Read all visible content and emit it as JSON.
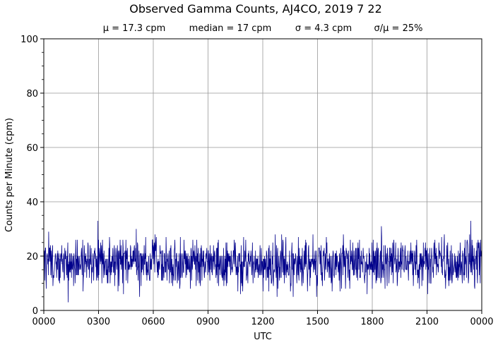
{
  "chart_data": {
    "type": "line",
    "title": "Observed Gamma Counts, AJ4CO, 2019 7 22",
    "subtitle": [
      "μ = 17.3 cpm",
      "median = 17 cpm",
      "σ = 4.3 cpm",
      "σ/μ = 25%"
    ],
    "xlabel": "UTC",
    "ylabel": "Counts per Minute (cpm)",
    "xlim": [
      0,
      1440
    ],
    "ylim": [
      0,
      100
    ],
    "x_unit": "minutes of day",
    "x_ticks": [
      {
        "value": 0,
        "label": "0000"
      },
      {
        "value": 180,
        "label": "0300"
      },
      {
        "value": 360,
        "label": "0600"
      },
      {
        "value": 540,
        "label": "0900"
      },
      {
        "value": 720,
        "label": "1200"
      },
      {
        "value": 900,
        "label": "1500"
      },
      {
        "value": 1080,
        "label": "1800"
      },
      {
        "value": 1260,
        "label": "2100"
      },
      {
        "value": 1440,
        "label": "0000"
      }
    ],
    "y_ticks": [
      0,
      20,
      40,
      60,
      80,
      100
    ],
    "grid": true,
    "legend": "none",
    "series": [
      {
        "color": "#00008b",
        "mean": 17.3,
        "median": 17,
        "std": 4.3,
        "n_points": 1440,
        "notable_points": [
          {
            "x": 8,
            "y": 8
          },
          {
            "x": 16,
            "y": 29
          },
          {
            "x": 80,
            "y": 3
          },
          {
            "x": 178,
            "y": 33
          },
          {
            "x": 304,
            "y": 30
          },
          {
            "x": 1110,
            "y": 31
          },
          {
            "x": 1404,
            "y": 33
          },
          {
            "x": 1436,
            "y": 26
          },
          {
            "x": 1440,
            "y": 14
          }
        ]
      }
    ]
  }
}
